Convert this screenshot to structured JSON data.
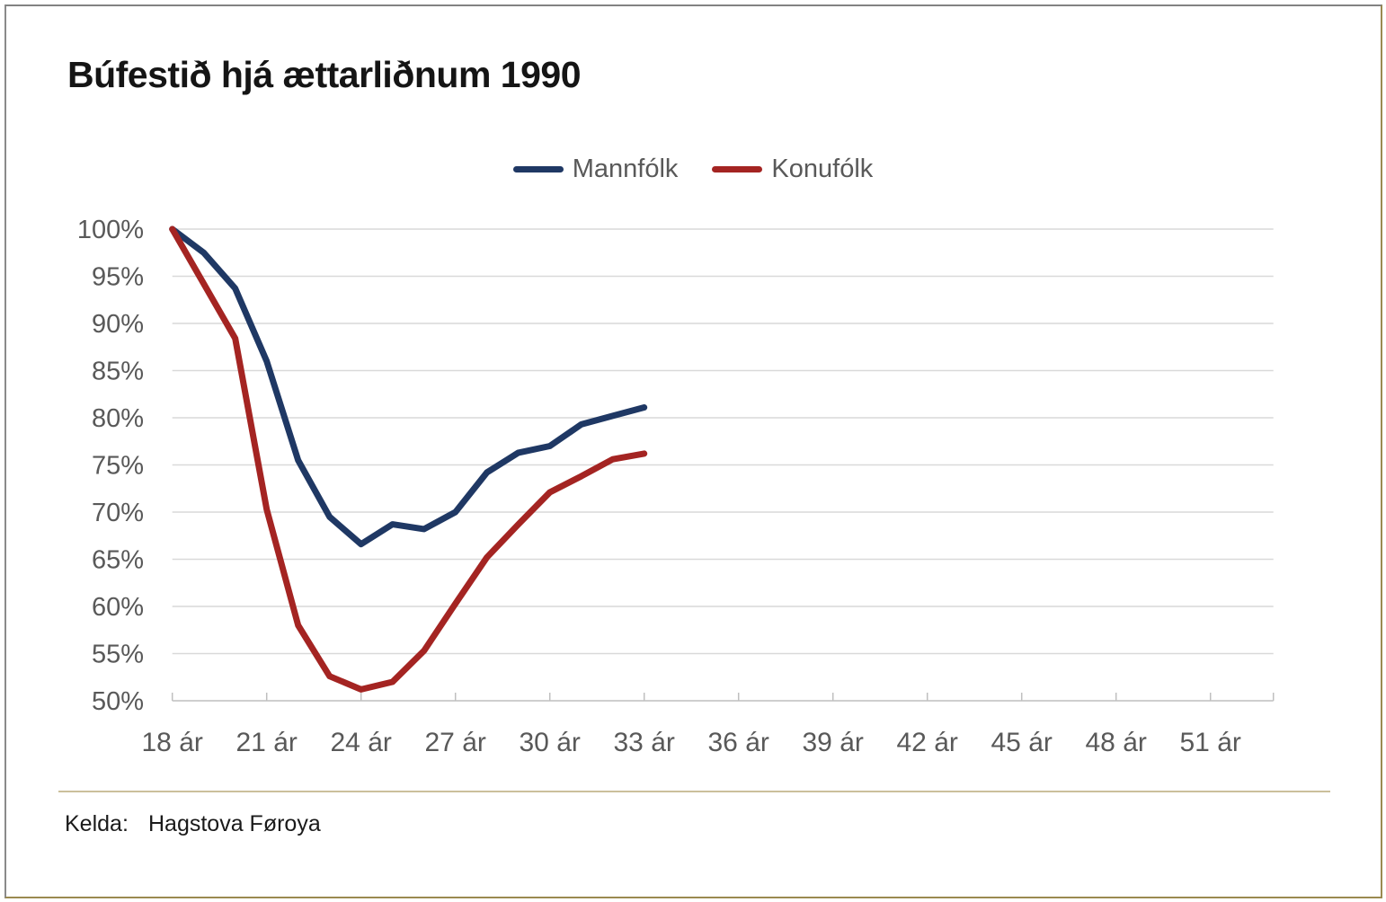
{
  "source": {
    "label": "Kelda:",
    "value": "Hagstova Føroya"
  },
  "colors": {
    "series_mannfolk": "#1F3864",
    "series_konufolk": "#A42422",
    "gridline": "#D9D9D9",
    "axis": "#BFBFBF",
    "tick_text": "#595959",
    "title_text": "#151515",
    "frame_accent": "#9A8A50",
    "divider": "#CBBF9B"
  },
  "chart_data": {
    "type": "line",
    "title": "Búfestið hjá ættarliðnum 1990",
    "xlabel": "",
    "ylabel": "",
    "x_unit": "ár",
    "ages": [
      18,
      19,
      20,
      21,
      22,
      23,
      24,
      25,
      26,
      27,
      28,
      29,
      30,
      31,
      32,
      33
    ],
    "series": [
      {
        "name": "Mannfólk",
        "color": "#1F3864",
        "values": [
          100,
          97.5,
          93.7,
          86.0,
          75.5,
          69.5,
          66.6,
          68.7,
          68.2,
          70.0,
          74.2,
          76.3,
          77.0,
          79.3,
          80.2,
          81.1
        ]
      },
      {
        "name": "Konufólk",
        "color": "#A42422",
        "values": [
          100,
          94.2,
          88.4,
          70.3,
          58.0,
          52.6,
          51.2,
          52.0,
          55.3,
          60.3,
          65.2,
          68.7,
          72.1,
          73.8,
          75.6,
          76.2
        ]
      }
    ],
    "xlim": [
      18,
      53
    ],
    "ylim": [
      50,
      100
    ],
    "x_ticks": [
      {
        "value": 18,
        "label": "18 ár"
      },
      {
        "value": 21,
        "label": "21 ár"
      },
      {
        "value": 24,
        "label": "24 ár"
      },
      {
        "value": 27,
        "label": "27 ár"
      },
      {
        "value": 30,
        "label": "30 ár"
      },
      {
        "value": 33,
        "label": "33 ár"
      },
      {
        "value": 36,
        "label": "36 ár"
      },
      {
        "value": 39,
        "label": "39 ár"
      },
      {
        "value": 42,
        "label": "42 ár"
      },
      {
        "value": 45,
        "label": "45 ár"
      },
      {
        "value": 48,
        "label": "48 ár"
      },
      {
        "value": 51,
        "label": "51 ár"
      }
    ],
    "y_ticks": [
      {
        "value": 100,
        "label": "100%"
      },
      {
        "value": 95,
        "label": "95%"
      },
      {
        "value": 90,
        "label": "90%"
      },
      {
        "value": 85,
        "label": "85%"
      },
      {
        "value": 80,
        "label": "80%"
      },
      {
        "value": 75,
        "label": "75%"
      },
      {
        "value": 70,
        "label": "70%"
      },
      {
        "value": 65,
        "label": "65%"
      },
      {
        "value": 60,
        "label": "60%"
      },
      {
        "value": 55,
        "label": "55%"
      },
      {
        "value": 50,
        "label": "50%"
      }
    ],
    "grid": true,
    "legend_position": "top"
  }
}
